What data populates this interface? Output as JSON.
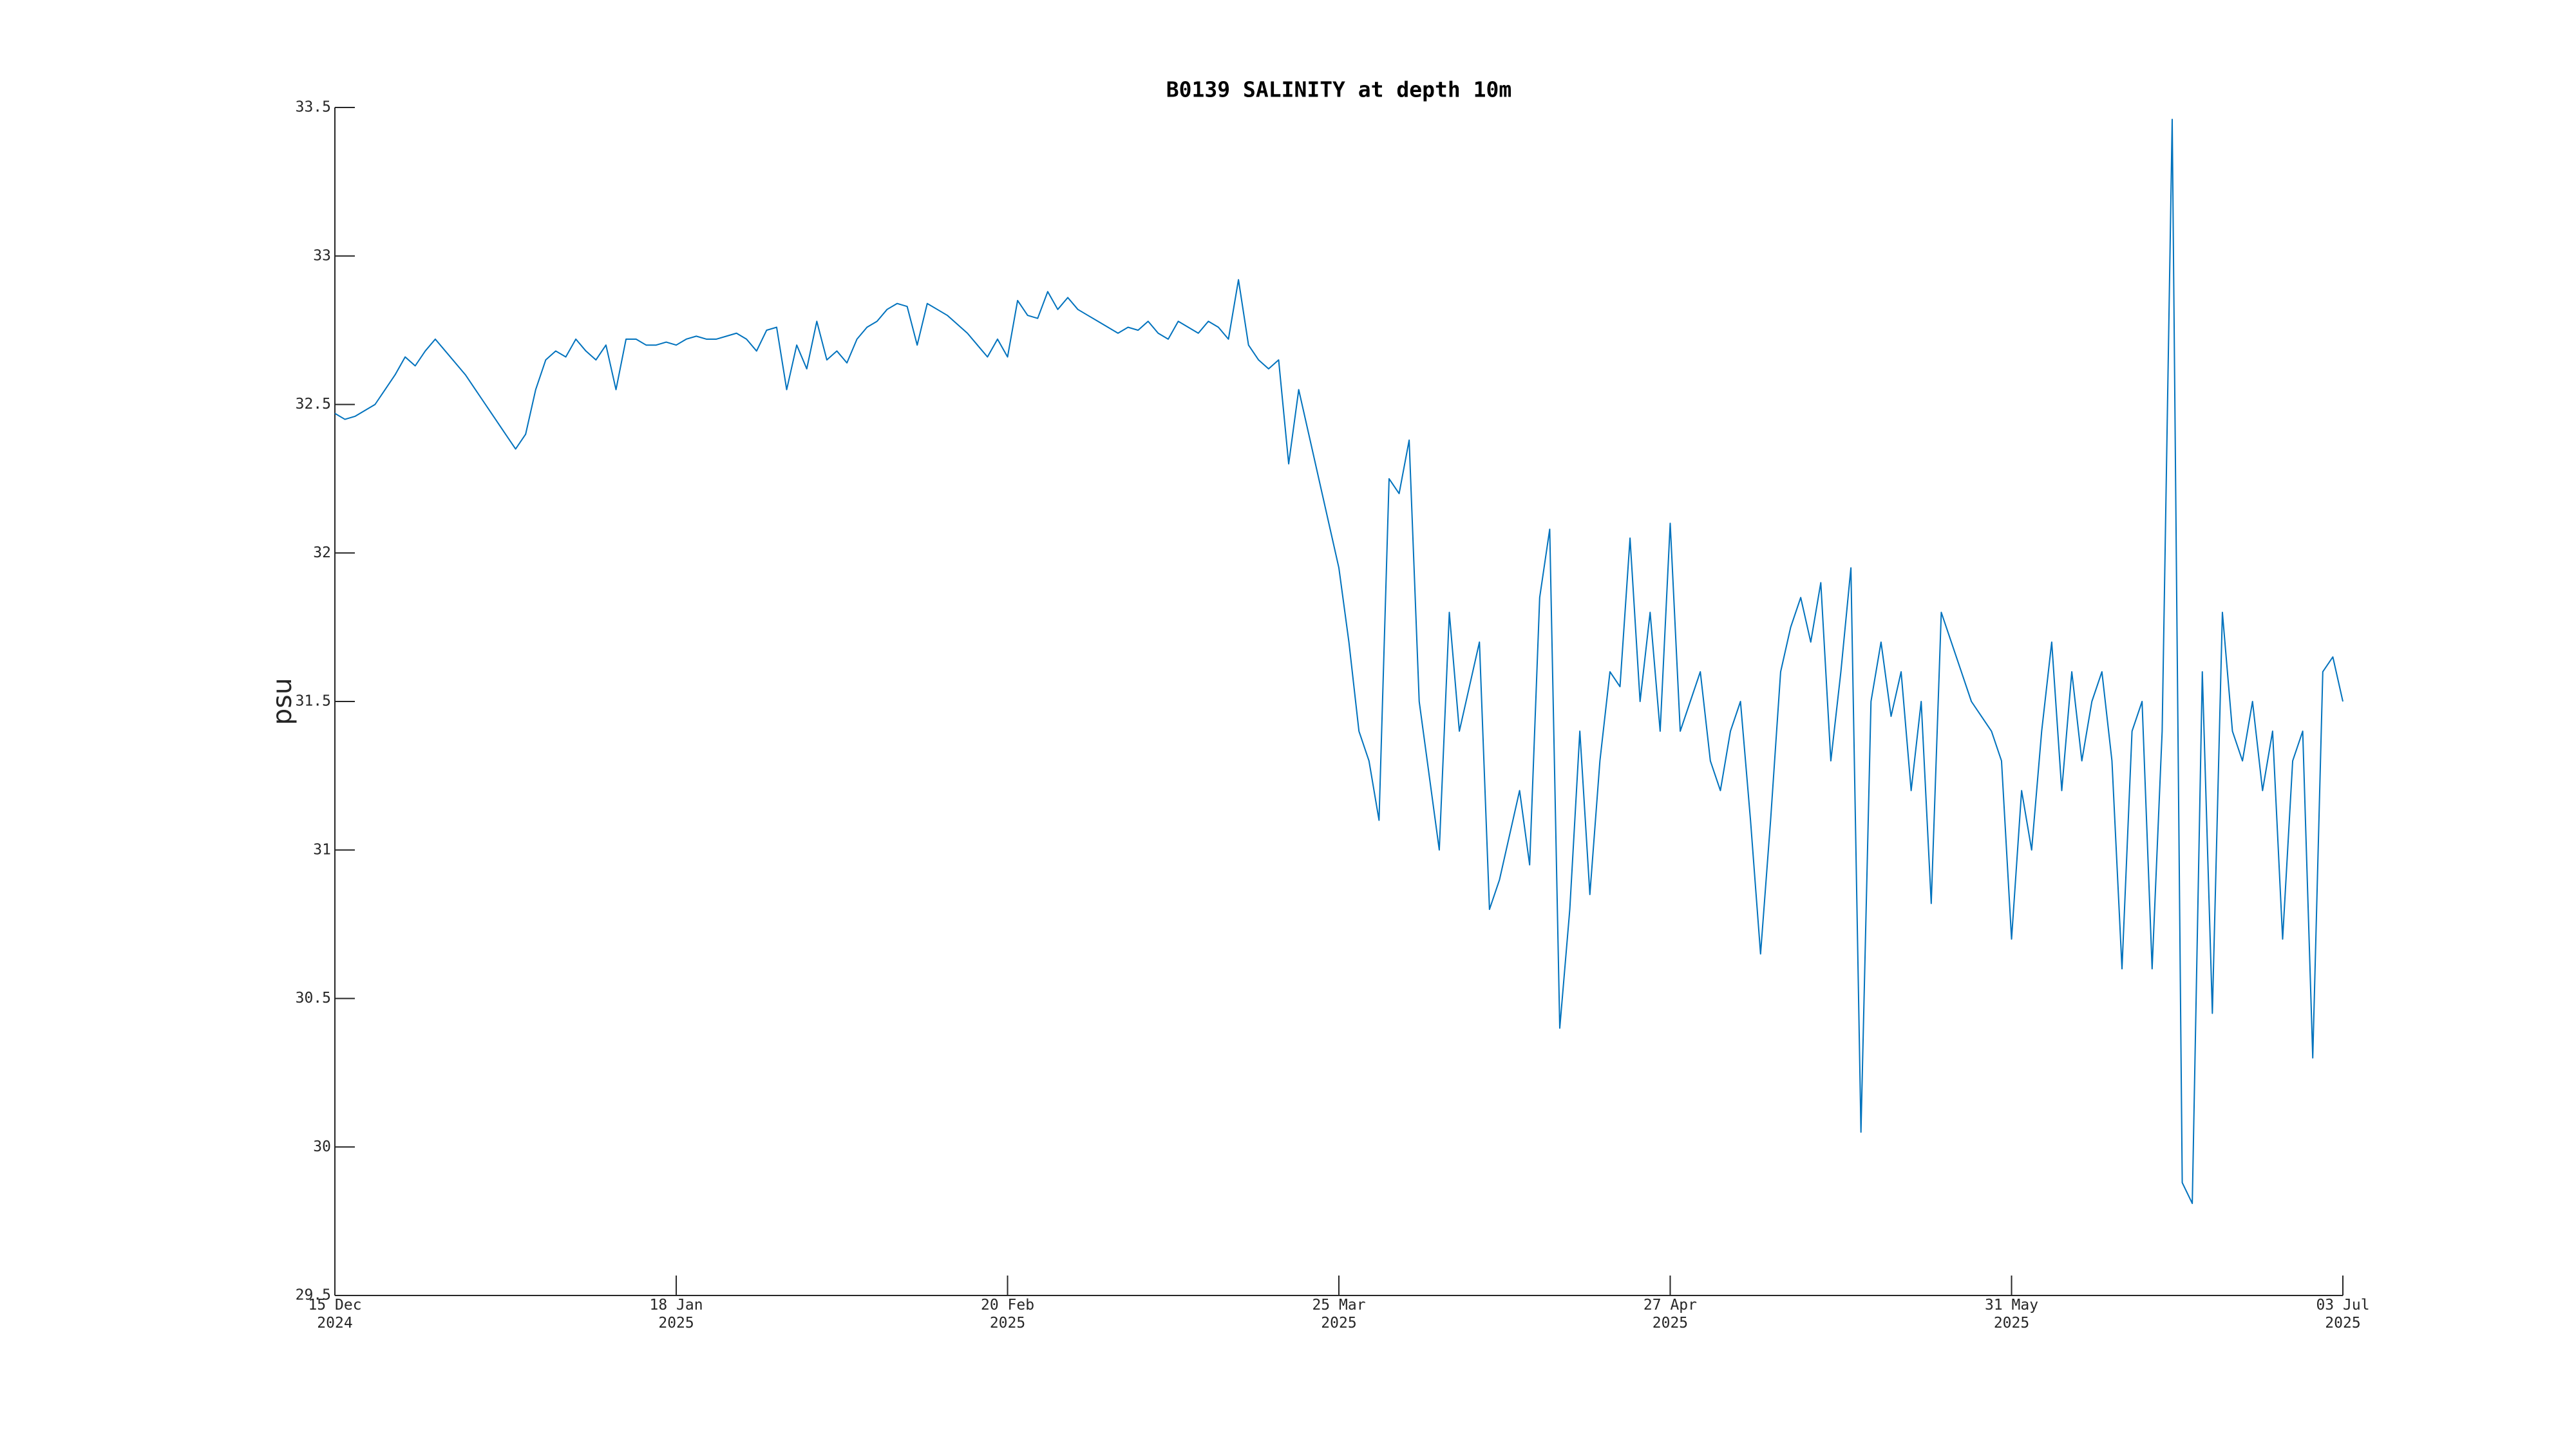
{
  "chart_data": {
    "type": "line",
    "title": "B0139 SALINITY at depth 10m",
    "y_label": "psu",
    "color": "#0072bd",
    "xlim": [
      "2024-12-15",
      "2025-07-03"
    ],
    "xticks": [
      {
        "value": "2024-12-15",
        "label": "15 Dec\n2024"
      },
      {
        "value": "2025-01-18",
        "label": "18 Jan\n2025"
      },
      {
        "value": "2025-02-20",
        "label": "20 Feb\n2025"
      },
      {
        "value": "2025-03-25",
        "label": "25 Mar\n2025"
      },
      {
        "value": "2025-04-27",
        "label": "27 Apr\n2025"
      },
      {
        "value": "2025-05-31",
        "label": "31 May\n2025"
      },
      {
        "value": "2025-07-03",
        "label": "03 Jul\n2025"
      }
    ],
    "ylim": [
      29.5,
      33.5
    ],
    "yticks": [
      29.5,
      30,
      30.5,
      31,
      31.5,
      32,
      32.5,
      33,
      33.5
    ],
    "x": [
      "2024-12-15",
      "2024-12-16",
      "2024-12-17",
      "2024-12-18",
      "2024-12-19",
      "2024-12-20",
      "2024-12-21",
      "2024-12-22",
      "2024-12-23",
      "2024-12-24",
      "2024-12-25",
      "2024-12-26",
      "2024-12-27",
      "2024-12-28",
      "2024-12-29",
      "2024-12-30",
      "2024-12-31",
      "2025-01-01",
      "2025-01-02",
      "2025-01-03",
      "2025-01-04",
      "2025-01-05",
      "2025-01-06",
      "2025-01-07",
      "2025-01-08",
      "2025-01-09",
      "2025-01-10",
      "2025-01-11",
      "2025-01-12",
      "2025-01-13",
      "2025-01-14",
      "2025-01-15",
      "2025-01-16",
      "2025-01-17",
      "2025-01-18",
      "2025-01-19",
      "2025-01-20",
      "2025-01-21",
      "2025-01-22",
      "2025-01-23",
      "2025-01-24",
      "2025-01-25",
      "2025-01-26",
      "2025-01-27",
      "2025-01-28",
      "2025-01-29",
      "2025-01-30",
      "2025-01-31",
      "2025-02-01",
      "2025-02-02",
      "2025-02-03",
      "2025-02-04",
      "2025-02-05",
      "2025-02-06",
      "2025-02-07",
      "2025-02-08",
      "2025-02-09",
      "2025-02-10",
      "2025-02-11",
      "2025-02-12",
      "2025-02-13",
      "2025-02-14",
      "2025-02-15",
      "2025-02-16",
      "2025-02-17",
      "2025-02-18",
      "2025-02-19",
      "2025-02-20",
      "2025-02-21",
      "2025-02-22",
      "2025-02-23",
      "2025-02-24",
      "2025-02-25",
      "2025-02-26",
      "2025-02-27",
      "2025-02-28",
      "2025-03-01",
      "2025-03-02",
      "2025-03-03",
      "2025-03-04",
      "2025-03-05",
      "2025-03-06",
      "2025-03-07",
      "2025-03-08",
      "2025-03-09",
      "2025-03-10",
      "2025-03-11",
      "2025-03-12",
      "2025-03-13",
      "2025-03-14",
      "2025-03-15",
      "2025-03-16",
      "2025-03-17",
      "2025-03-18",
      "2025-03-19",
      "2025-03-20",
      "2025-03-21",
      "2025-03-22",
      "2025-03-23",
      "2025-03-24",
      "2025-03-25",
      "2025-03-26",
      "2025-03-27",
      "2025-03-28",
      "2025-03-29",
      "2025-03-30",
      "2025-03-31",
      "2025-04-01",
      "2025-04-02",
      "2025-04-03",
      "2025-04-04",
      "2025-04-05",
      "2025-04-06",
      "2025-04-07",
      "2025-04-08",
      "2025-04-09",
      "2025-04-10",
      "2025-04-11",
      "2025-04-12",
      "2025-04-13",
      "2025-04-14",
      "2025-04-15",
      "2025-04-16",
      "2025-04-17",
      "2025-04-18",
      "2025-04-19",
      "2025-04-20",
      "2025-04-21",
      "2025-04-22",
      "2025-04-23",
      "2025-04-24",
      "2025-04-25",
      "2025-04-26",
      "2025-04-27",
      "2025-04-28",
      "2025-04-29",
      "2025-04-30",
      "2025-05-01",
      "2025-05-02",
      "2025-05-03",
      "2025-05-04",
      "2025-05-05",
      "2025-05-06",
      "2025-05-07",
      "2025-05-08",
      "2025-05-09",
      "2025-05-10",
      "2025-05-11",
      "2025-05-12",
      "2025-05-13",
      "2025-05-14",
      "2025-05-15",
      "2025-05-16",
      "2025-05-17",
      "2025-05-18",
      "2025-05-19",
      "2025-05-20",
      "2025-05-21",
      "2025-05-22",
      "2025-05-23",
      "2025-05-24",
      "2025-05-25",
      "2025-05-26",
      "2025-05-27",
      "2025-05-28",
      "2025-05-29",
      "2025-05-30",
      "2025-05-31",
      "2025-06-01",
      "2025-06-02",
      "2025-06-03",
      "2025-06-04",
      "2025-06-05",
      "2025-06-06",
      "2025-06-07",
      "2025-06-08",
      "2025-06-09",
      "2025-06-10",
      "2025-06-11",
      "2025-06-12",
      "2025-06-13",
      "2025-06-14",
      "2025-06-15",
      "2025-06-16",
      "2025-06-17",
      "2025-06-18",
      "2025-06-19",
      "2025-06-20",
      "2025-06-21",
      "2025-06-22",
      "2025-06-23",
      "2025-06-24",
      "2025-06-25",
      "2025-06-26",
      "2025-06-27",
      "2025-06-28",
      "2025-06-29",
      "2025-06-30",
      "2025-07-01",
      "2025-07-02",
      "2025-07-03"
    ],
    "values": [
      32.47,
      32.45,
      32.46,
      32.48,
      32.5,
      32.55,
      32.6,
      32.66,
      32.63,
      32.68,
      32.72,
      32.68,
      32.64,
      32.6,
      32.55,
      32.5,
      32.45,
      32.4,
      32.35,
      32.4,
      32.55,
      32.65,
      32.68,
      32.66,
      32.72,
      32.68,
      32.65,
      32.7,
      32.55,
      32.72,
      32.72,
      32.7,
      32.7,
      32.71,
      32.7,
      32.72,
      32.73,
      32.72,
      32.72,
      32.73,
      32.74,
      32.72,
      32.68,
      32.75,
      32.76,
      32.55,
      32.7,
      32.62,
      32.78,
      32.65,
      32.68,
      32.64,
      32.72,
      32.76,
      32.78,
      32.82,
      32.84,
      32.83,
      32.7,
      32.84,
      32.82,
      32.8,
      32.77,
      32.74,
      32.7,
      32.66,
      32.72,
      32.66,
      32.85,
      32.8,
      32.79,
      32.88,
      32.82,
      32.86,
      32.82,
      32.8,
      32.78,
      32.76,
      32.74,
      32.76,
      32.75,
      32.78,
      32.74,
      32.72,
      32.78,
      32.76,
      32.74,
      32.78,
      32.76,
      32.72,
      32.92,
      32.7,
      32.65,
      32.62,
      32.65,
      32.3,
      32.55,
      32.4,
      32.25,
      32.1,
      31.95,
      31.7,
      31.4,
      31.3,
      31.1,
      32.25,
      32.2,
      32.38,
      31.5,
      31.25,
      31.0,
      31.8,
      31.4,
      31.55,
      31.7,
      30.8,
      30.9,
      31.05,
      31.2,
      30.95,
      31.85,
      32.08,
      30.4,
      30.8,
      31.4,
      30.85,
      31.3,
      31.6,
      31.55,
      32.05,
      31.5,
      31.8,
      31.4,
      32.1,
      31.4,
      31.5,
      31.6,
      31.3,
      31.2,
      31.4,
      31.5,
      31.1,
      30.65,
      31.1,
      31.6,
      31.75,
      31.85,
      31.7,
      31.9,
      31.3,
      31.6,
      31.95,
      30.05,
      31.5,
      31.7,
      31.45,
      31.6,
      31.2,
      31.5,
      30.82,
      31.8,
      31.7,
      31.6,
      31.5,
      31.45,
      31.4,
      31.3,
      30.7,
      31.2,
      31.0,
      31.4,
      31.7,
      31.2,
      31.6,
      31.3,
      31.5,
      31.6,
      31.3,
      30.6,
      31.4,
      31.5,
      30.6,
      31.4,
      33.46,
      29.88,
      29.81,
      31.6,
      30.45,
      31.8,
      31.4,
      31.3,
      31.5,
      31.2,
      31.4,
      30.7,
      31.3,
      31.4,
      30.3,
      31.6,
      31.65,
      31.5
    ]
  }
}
